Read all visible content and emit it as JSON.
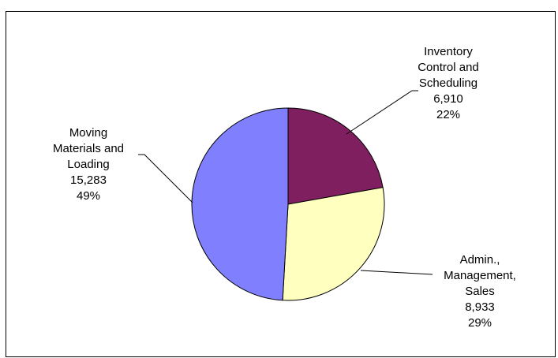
{
  "chart_data": {
    "type": "pie",
    "title": "",
    "slices": [
      {
        "label_lines": [
          "Inventory",
          "Control and",
          "Scheduling"
        ],
        "value": 6910,
        "value_text": "6,910",
        "percent": 22,
        "percent_text": "22%",
        "color": "#7f1f5f"
      },
      {
        "label_lines": [
          "Admin.,",
          "Management,",
          "Sales"
        ],
        "value": 8933,
        "value_text": "8,933",
        "percent": 29,
        "percent_text": "29%",
        "color": "#ffffc0"
      },
      {
        "label_lines": [
          "Moving",
          "Materials and",
          "Loading"
        ],
        "value": 15283,
        "value_text": "15,283",
        "percent": 49,
        "percent_text": "49%",
        "color": "#8080ff"
      }
    ],
    "start_at": "top",
    "direction": "clockwise",
    "legend": "none"
  }
}
